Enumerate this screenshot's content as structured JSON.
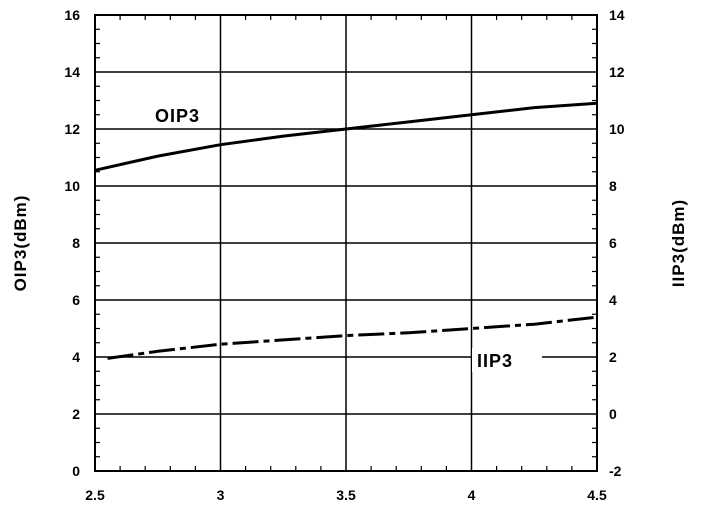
{
  "chart_data": {
    "type": "line",
    "title": "",
    "xlabel": "",
    "ylabel": "OIP3(dBm)",
    "y2label": "IIP3(dBm)",
    "xlim": [
      2.5,
      4.5
    ],
    "ylim": [
      0,
      16
    ],
    "y2lim": [
      -2,
      14
    ],
    "x_ticks": [
      2.5,
      3,
      3.5,
      4,
      4.5
    ],
    "x_tick_labels": [
      "2.5",
      "3",
      "3.5",
      "4",
      "4.5"
    ],
    "y_ticks": [
      0,
      2,
      4,
      6,
      8,
      10,
      12,
      14,
      16
    ],
    "y_tick_labels": [
      "0",
      "2",
      "4",
      "6",
      "8",
      "10",
      "12",
      "14",
      "16"
    ],
    "y2_ticks": [
      -2,
      0,
      2,
      4,
      6,
      8,
      10,
      12,
      14
    ],
    "y2_tick_labels": [
      "-2",
      "0",
      "2",
      "4",
      "6",
      "8",
      "10",
      "12",
      "14"
    ],
    "grid": true,
    "series": [
      {
        "name": "OIP3",
        "axis": "left",
        "style": "solid",
        "x": [
          2.5,
          2.75,
          3.0,
          3.25,
          3.5,
          3.75,
          4.0,
          4.25,
          4.5
        ],
        "y": [
          10.55,
          11.05,
          11.45,
          11.75,
          12.0,
          12.25,
          12.5,
          12.75,
          12.9
        ]
      },
      {
        "name": "IIP3",
        "axis": "right",
        "style": "dashed",
        "x": [
          2.55,
          2.75,
          3.0,
          3.25,
          3.5,
          3.75,
          4.0,
          4.25,
          4.5
        ],
        "y": [
          1.95,
          2.2,
          2.45,
          2.6,
          2.75,
          2.85,
          3.0,
          3.15,
          3.4
        ]
      }
    ],
    "series_label_text": {
      "OIP3": "OIP3",
      "IIP3": "IIP3"
    },
    "colors": {
      "line": "#000000",
      "grid": "#000000",
      "background": "#ffffff"
    }
  }
}
